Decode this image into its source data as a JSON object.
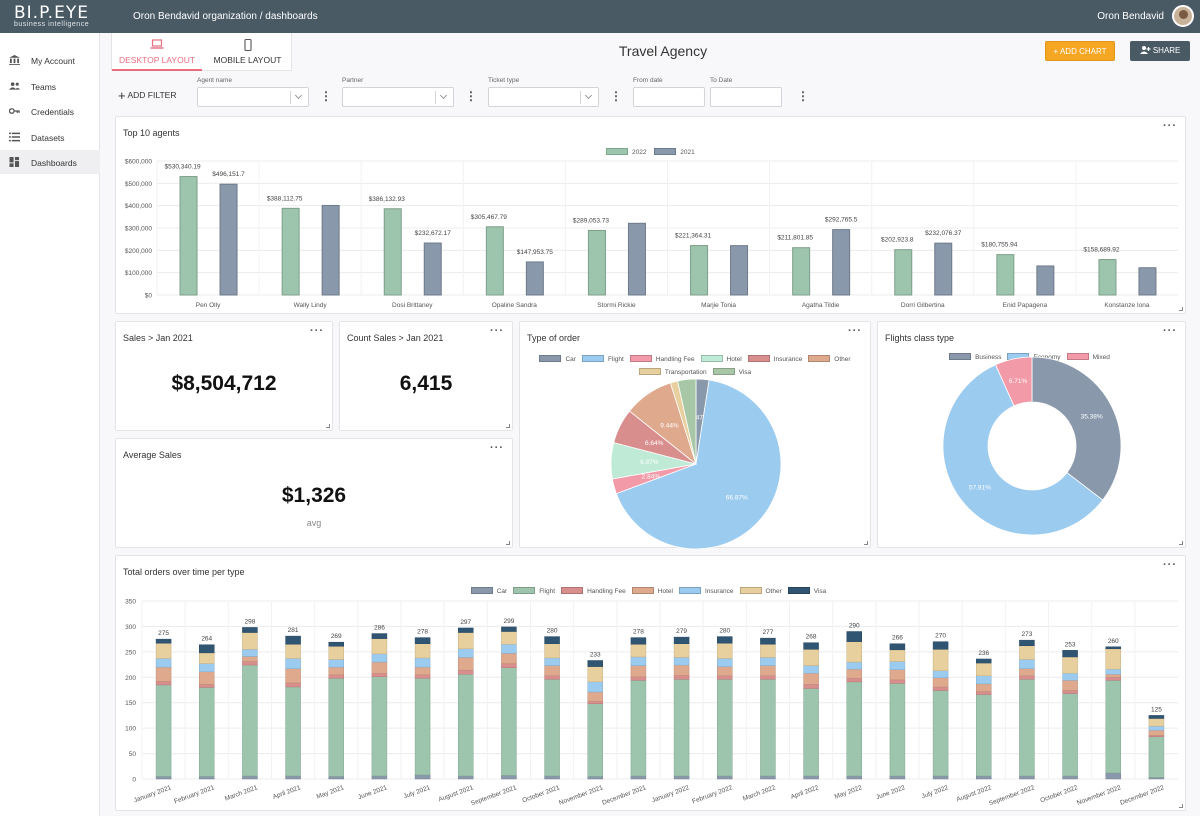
{
  "header": {
    "logo": "BI.P.EYE",
    "logo_sub": "business intelligence",
    "breadcrumb": "Oron Bendavid organization / dashboards",
    "user": "Oron Bendavid"
  },
  "sidebar": {
    "items": [
      {
        "label": "My Account",
        "icon": "bank-icon"
      },
      {
        "label": "Teams",
        "icon": "people-icon"
      },
      {
        "label": "Credentials",
        "icon": "key-icon"
      },
      {
        "label": "Datasets",
        "icon": "list-icon"
      },
      {
        "label": "Dashboards",
        "icon": "dashboard-icon",
        "active": true
      }
    ]
  },
  "layout_tabs": {
    "desktop": "DESKTOP LAYOUT",
    "mobile": "MOBILE LAYOUT"
  },
  "page_title": "Travel Agency",
  "buttons": {
    "add_chart": "ADD CHART",
    "share": "SHARE"
  },
  "filters": {
    "add_filter": "ADD FILTER",
    "agent_name": "Agent name",
    "partner": "Partner",
    "ticket_type": "Ticket type",
    "from_date": "From date",
    "to_date": "To Date"
  },
  "cards": {
    "top_agents": {
      "title": "Top 10 agents"
    },
    "sales": {
      "title": "Sales > Jan 2021",
      "value": "$8,504,712"
    },
    "count_sales": {
      "title": "Count Sales > Jan 2021",
      "value": "6,415"
    },
    "avg_sales": {
      "title": "Average Sales",
      "value": "$1,326",
      "unit": "avg"
    },
    "order_type": {
      "title": "Type of order"
    },
    "flights_class": {
      "title": "Flights class type"
    },
    "orders_time": {
      "title": "Total orders over time per type"
    }
  },
  "colors": {
    "green": "#9dc5ad",
    "slate": "#8a98ab",
    "blue": "#9ccbf0",
    "pink": "#f29aa8",
    "mint": "#bfead6",
    "red": "#d98e8e",
    "salmon": "#dfa98e",
    "tan": "#e8cf9e",
    "sage": "#a8c7a6",
    "navy": "#2f5573"
  },
  "chart_data": [
    {
      "type": "bar",
      "title": "Top 10 agents",
      "categories": [
        "Pen Olly",
        "Wally Lindy",
        "Dosi Brittaney",
        "Opaline Sandra",
        "Stormi Rickie",
        "Marjie Tonia",
        "Agatha Tildie",
        "Dorri Gilbertina",
        "Enid Papagena",
        "Konstanze Iona"
      ],
      "series": [
        {
          "name": "2022",
          "color": "#9dc5ad",
          "values": [
            530340.19,
            388112.75,
            386132.93,
            305467.79,
            289053.73,
            221364.31,
            211801.85,
            202923.8,
            180755.94,
            158689.92
          ],
          "labels": [
            "$530,340.19",
            "$388,112.75",
            "$386,132.93",
            "$305,467.79",
            "$289,053.73",
            "$221,364.31",
            "$211,801.85",
            "$202,923.8",
            "$180,755.94",
            "$158,689.92"
          ]
        },
        {
          "name": "2021",
          "color": "#8a98ab",
          "values": [
            496151.7,
            401000,
            232672.17,
            147953.75,
            321000,
            221000,
            292765.5,
            232076.37,
            130000,
            122000
          ],
          "labels": [
            "$496,151.7",
            "",
            "$232,672.17",
            "$147,953.75",
            "",
            "",
            "$292,765.5",
            "$232,076.37",
            "",
            ""
          ]
        }
      ],
      "yticks": [
        "$600,000",
        "$500,000",
        "$400,000",
        "$300,000",
        "$200,000",
        "$100,000",
        "$0"
      ],
      "ylim": [
        0,
        600000
      ],
      "legend": "top"
    },
    {
      "type": "pie",
      "title": "Type of order",
      "slices": [
        {
          "name": "Car",
          "value": 2.47,
          "label": "2.47%",
          "color": "#8a98ab"
        },
        {
          "name": "Flight",
          "value": 66.87,
          "label": "66.87%",
          "color": "#9ccbf0"
        },
        {
          "name": "Handling Fee",
          "value": 2.84,
          "label": "2.84%",
          "color": "#f29aa8"
        },
        {
          "name": "Hotel",
          "value": 6.87,
          "label": "6.87%",
          "color": "#bfead6"
        },
        {
          "name": "Insurance",
          "value": 6.64,
          "label": "6.64%",
          "color": "#d98e8e"
        },
        {
          "name": "Other",
          "value": 9.44,
          "label": "9.44%",
          "color": "#dfa98e"
        },
        {
          "name": "Transportation",
          "value": 1.4,
          "label": "",
          "color": "#e8cf9e"
        },
        {
          "name": "Visa",
          "value": 3.47,
          "label": "",
          "color": "#a8c7a6"
        }
      ],
      "legend": "top"
    },
    {
      "type": "pie",
      "title": "Flights class type",
      "donut": true,
      "slices": [
        {
          "name": "Business",
          "value": 35.38,
          "label": "35.38%",
          "color": "#8a98ab"
        },
        {
          "name": "Economy",
          "value": 57.91,
          "label": "57.91%",
          "color": "#9ccbf0"
        },
        {
          "name": "Mixed",
          "value": 6.71,
          "label": "6.71%",
          "color": "#f29aa8"
        }
      ],
      "legend": "top"
    },
    {
      "type": "bar",
      "stacked": true,
      "title": "Total orders over time per type",
      "categories": [
        "January 2021",
        "February 2021",
        "March 2021",
        "April 2021",
        "May 2021",
        "June 2021",
        "July 2021",
        "August 2021",
        "September 2021",
        "October 2021",
        "November 2021",
        "December 2021",
        "January 2022",
        "February 2022",
        "March 2022",
        "April 2022",
        "May 2022",
        "June 2022",
        "July 2022",
        "August 2022",
        "September 2022",
        "October 2022",
        "November 2022",
        "December 2022"
      ],
      "totals": [
        275,
        264,
        298,
        281,
        269,
        286,
        278,
        297,
        299,
        280,
        233,
        278,
        279,
        280,
        277,
        268,
        290,
        266,
        270,
        236,
        273,
        253,
        260,
        125
      ],
      "series": [
        {
          "name": "Car",
          "color": "#8a98ab",
          "values": [
            5,
            5,
            6,
            6,
            5,
            6,
            8,
            6,
            7,
            6,
            5,
            6,
            6,
            6,
            6,
            6,
            6,
            6,
            6,
            6,
            6,
            6,
            12,
            3
          ]
        },
        {
          "name": "Flight",
          "color": "#9dc5ad",
          "values": [
            180,
            175,
            218,
            175,
            193,
            195,
            190,
            200,
            212,
            190,
            143,
            188,
            190,
            190,
            190,
            172,
            185,
            182,
            168,
            160,
            190,
            162,
            182,
            80
          ]
        },
        {
          "name": "Handling Fee",
          "color": "#d98e8e",
          "values": [
            7,
            6,
            7,
            8,
            7,
            7,
            7,
            8,
            8,
            7,
            5,
            7,
            8,
            7,
            7,
            8,
            7,
            7,
            7,
            6,
            7,
            6,
            6,
            3
          ]
        },
        {
          "name": "Hotel",
          "color": "#dfa98e",
          "values": [
            28,
            25,
            10,
            28,
            15,
            22,
            15,
            25,
            20,
            20,
            18,
            22,
            20,
            18,
            20,
            22,
            18,
            20,
            18,
            15,
            14,
            20,
            6,
            10
          ]
        },
        {
          "name": "Insurance",
          "color": "#9ccbf0",
          "values": [
            17,
            16,
            14,
            20,
            15,
            16,
            18,
            17,
            18,
            15,
            20,
            17,
            15,
            16,
            16,
            15,
            14,
            16,
            14,
            16,
            18,
            14,
            10,
            8
          ]
        },
        {
          "name": "Other",
          "color": "#e8cf9e",
          "values": [
            30,
            21,
            33,
            28,
            26,
            30,
            28,
            32,
            25,
            28,
            30,
            25,
            27,
            30,
            26,
            32,
            40,
            23,
            42,
            25,
            27,
            32,
            40,
            15
          ]
        },
        {
          "name": "Visa",
          "color": "#2f5573",
          "values": [
            8,
            16,
            10,
            16,
            8,
            10,
            12,
            9,
            9,
            14,
            12,
            13,
            13,
            13,
            12,
            13,
            20,
            12,
            15,
            8,
            11,
            13,
            4,
            6
          ]
        }
      ],
      "yticks": [
        "350",
        "300",
        "250",
        "200",
        "150",
        "100",
        "50",
        "0"
      ],
      "ylim": [
        0,
        350
      ],
      "legend": "top"
    }
  ]
}
